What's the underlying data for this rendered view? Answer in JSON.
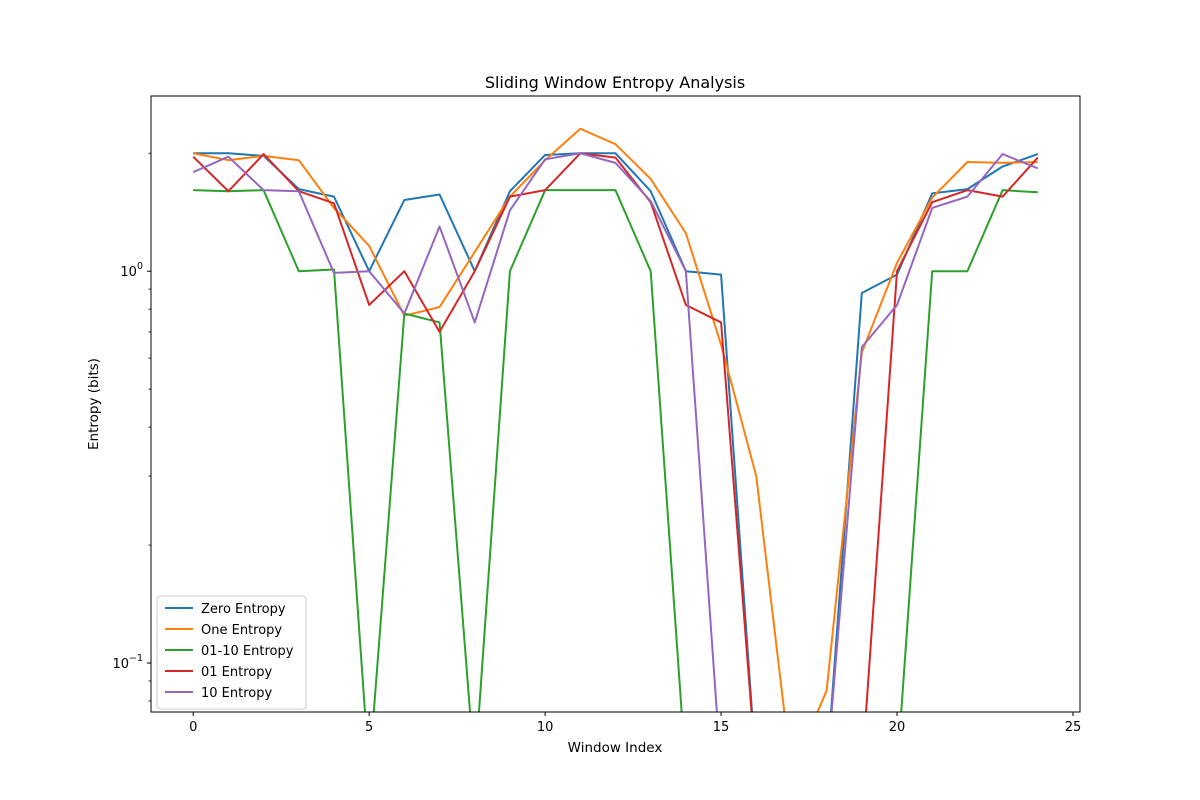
{
  "chart_data": {
    "type": "line",
    "title": "Sliding Window Entropy Analysis",
    "xlabel": "Window Index",
    "ylabel": "Entropy (bits)",
    "yscale": "log",
    "xlim": [
      -1.2,
      25.2
    ],
    "ylim": [
      0.075,
      2.8
    ],
    "xticks": [
      0,
      5,
      10,
      15,
      20,
      25
    ],
    "yticks": [
      {
        "value": 0.1,
        "base": "10",
        "exp": "−1"
      },
      {
        "value": 1,
        "base": "10",
        "exp": "0"
      }
    ],
    "grid": false,
    "legend": "lower-left",
    "x": [
      0,
      1,
      2,
      3,
      4,
      5,
      6,
      7,
      8,
      9,
      10,
      11,
      12,
      13,
      14,
      15,
      16,
      17,
      18,
      19,
      20,
      21,
      22,
      23,
      24
    ],
    "series": [
      {
        "name": "Zero Entropy",
        "color": "#1f77b4",
        "values": [
          2.0,
          2.0,
          1.97,
          1.62,
          1.55,
          1.0,
          1.52,
          1.57,
          1.0,
          1.6,
          1.98,
          2.0,
          2.0,
          1.6,
          1.0,
          0.98,
          0,
          0,
          0,
          0.88,
          0.98,
          1.58,
          1.62,
          1.85,
          1.99
        ]
      },
      {
        "name": "One Entropy",
        "color": "#ff7f0e",
        "values": [
          2.0,
          1.92,
          1.97,
          1.92,
          1.45,
          1.16,
          0.77,
          0.81,
          1.12,
          1.55,
          1.92,
          2.31,
          2.11,
          1.72,
          1.25,
          0.65,
          0.3,
          0,
          0.085,
          0.62,
          1.05,
          1.54,
          1.9,
          1.89,
          1.9
        ]
      },
      {
        "name": "01-10 Entropy",
        "color": "#2ca02c",
        "values": [
          1.61,
          1.6,
          1.61,
          1.0,
          1.01,
          0,
          0.78,
          0.74,
          0,
          1.0,
          1.61,
          1.61,
          1.61,
          1.0,
          0,
          0,
          0,
          0,
          0,
          0,
          0,
          1.0,
          1.0,
          1.61,
          1.59
        ]
      },
      {
        "name": "01 Entropy",
        "color": "#d62728",
        "values": [
          1.96,
          1.6,
          1.99,
          1.6,
          1.49,
          0.82,
          1.0,
          0.7,
          1.0,
          1.55,
          1.61,
          2.0,
          1.95,
          1.5,
          0.82,
          0.74,
          0,
          0,
          0,
          0,
          1.0,
          1.5,
          1.61,
          1.55,
          1.95
        ]
      },
      {
        "name": "10 Entropy",
        "color": "#9467bd",
        "values": [
          1.79,
          1.96,
          1.61,
          1.6,
          0.99,
          1.0,
          0.78,
          1.3,
          0.74,
          1.43,
          1.93,
          2.0,
          1.89,
          1.51,
          1.0,
          0,
          0,
          0,
          0,
          0.64,
          0.82,
          1.45,
          1.55,
          1.99,
          1.83
        ]
      }
    ]
  }
}
